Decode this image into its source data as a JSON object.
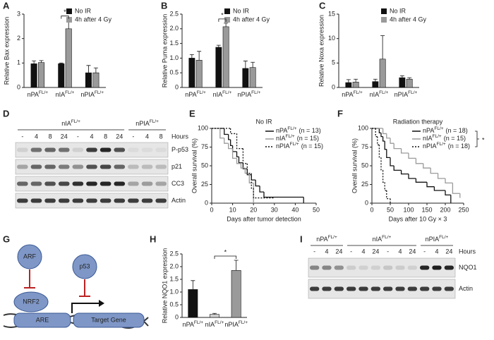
{
  "panel_labels": [
    "A",
    "B",
    "C",
    "D",
    "E",
    "F",
    "G",
    "H",
    "I"
  ],
  "chart_data": [
    {
      "type": "bar",
      "ylabel": "Relative Bax expression",
      "categories": [
        "nPA",
        "nIA",
        "nPIA"
      ],
      "category_superscripts": [
        "FL/+",
        "FL/+",
        "FL/+"
      ],
      "series": [
        {
          "name": "No IR",
          "color": "#111111",
          "values": [
            0.97,
            0.97,
            0.6
          ],
          "errors": [
            0.12,
            0.03,
            0.3
          ]
        },
        {
          "name": "4h after 4 Gy",
          "color": "#9a9a9a",
          "values": [
            1.02,
            2.4,
            0.6
          ],
          "errors": [
            0.08,
            0.35,
            0.2
          ]
        }
      ],
      "ylim": [
        0,
        3
      ],
      "yticks": [
        0,
        1,
        2,
        3
      ],
      "annotation": "*"
    },
    {
      "type": "bar",
      "ylabel": "Relative Puma expression",
      "categories": [
        "nPA",
        "nIA",
        "nPIA"
      ],
      "category_superscripts": [
        "FL/+",
        "FL/+",
        "FL/+"
      ],
      "series": [
        {
          "name": "No IR",
          "color": "#111111",
          "values": [
            1.0,
            1.37,
            0.65
          ],
          "errors": [
            0.12,
            0.07,
            0.25
          ]
        },
        {
          "name": "4h after 4 Gy",
          "color": "#9a9a9a",
          "values": [
            0.93,
            2.07,
            0.68
          ],
          "errors": [
            0.3,
            0.12,
            0.18
          ]
        }
      ],
      "ylim": [
        0,
        2.5
      ],
      "yticks": [
        0,
        0.5,
        {
          "value": 1,
          "label": "1.0"
        },
        1.5,
        {
          "value": 2,
          "label": "2.0"
        },
        2.5
      ],
      "annotation": "*"
    },
    {
      "type": "bar",
      "ylabel": "Relative Noxa expression",
      "categories": [
        "nPA",
        "nIA",
        "nPIA"
      ],
      "category_superscripts": [
        "FL/+",
        "FL/+",
        "FL/+"
      ],
      "series": [
        {
          "name": "No IR",
          "color": "#111111",
          "values": [
            1.0,
            1.2,
            2.0
          ],
          "errors": [
            0.6,
            0.5,
            0.4
          ]
        },
        {
          "name": "4h after 4 Gy",
          "color": "#9a9a9a",
          "values": [
            1.1,
            5.8,
            1.7
          ],
          "errors": [
            0.6,
            4.8,
            0.3
          ]
        }
      ],
      "ylim": [
        0,
        15
      ],
      "yticks": [
        0,
        5,
        10,
        15
      ]
    },
    {
      "type": "survival",
      "title": "No IR",
      "xlabel": "Days after tumor detection",
      "ylabel": "Overall survival (%)",
      "xlim": [
        0,
        50
      ],
      "xticks": [
        0,
        10,
        20,
        30,
        40,
        50
      ],
      "ylim": [
        0,
        100
      ],
      "yticks": [
        0,
        25,
        50,
        75,
        100
      ],
      "series": [
        {
          "name": "nPA",
          "name_superscript": "FL/+",
          "n_label": "(n = 13)",
          "color": "#111111",
          "dash": "solid",
          "x": [
            0,
            6,
            8,
            9,
            10,
            12,
            13,
            15,
            17,
            19,
            21,
            23,
            25,
            44
          ],
          "values": [
            100,
            92,
            85,
            77,
            69,
            62,
            54,
            46,
            38,
            31,
            23,
            15,
            8,
            0
          ]
        },
        {
          "name": "nIA",
          "name_superscript": "FL/+",
          "n_label": "(n = 15)",
          "color": "#9a9a9a",
          "dash": "solid",
          "x": [
            0,
            4,
            6,
            8,
            10,
            12,
            14,
            16,
            18,
            20
          ],
          "values": [
            100,
            87,
            80,
            73,
            60,
            53,
            47,
            40,
            27,
            0
          ]
        },
        {
          "name": "nPIA",
          "name_superscript": "FL/+",
          "n_label": "(n = 15)",
          "color": "#111111",
          "dash": "dotted",
          "x": [
            0,
            9,
            12,
            15,
            17,
            19,
            20,
            30
          ],
          "values": [
            100,
            93,
            73,
            53,
            40,
            20,
            7,
            7
          ]
        }
      ]
    },
    {
      "type": "survival",
      "title": "Radiation therapy",
      "xlabel": "Days after 10 Gy × 3",
      "ylabel": "Overall survival (%)",
      "xlim": [
        0,
        250
      ],
      "xticks": [
        0,
        50,
        100,
        150,
        200,
        250
      ],
      "ylim": [
        0,
        100
      ],
      "yticks": [
        0,
        25,
        50,
        75,
        100
      ],
      "annotation": "*",
      "series": [
        {
          "name": "nPA",
          "name_superscript": "FL/+",
          "n_label": "(n = 18)",
          "color": "#111111",
          "dash": "solid",
          "x": [
            0,
            20,
            25,
            30,
            35,
            40,
            50,
            60,
            80,
            100,
            120,
            150,
            170,
            200,
            215
          ],
          "values": [
            100,
            94,
            89,
            83,
            72,
            61,
            50,
            44,
            39,
            33,
            28,
            22,
            17,
            11,
            0
          ]
        },
        {
          "name": "nIA",
          "name_superscript": "FL/+",
          "n_label": "(n = 15)",
          "color": "#9a9a9a",
          "dash": "solid",
          "x": [
            0,
            30,
            40,
            50,
            60,
            80,
            100,
            120,
            140,
            160,
            180,
            200,
            220,
            240
          ],
          "values": [
            100,
            93,
            87,
            80,
            73,
            67,
            60,
            53,
            47,
            40,
            33,
            27,
            13,
            7
          ]
        },
        {
          "name": "nPIA",
          "name_superscript": "FL/+",
          "n_label": "(n = 18)",
          "color": "#111111",
          "dash": "dotted",
          "x": [
            0,
            10,
            15,
            20,
            25,
            30,
            35,
            40,
            50
          ],
          "values": [
            100,
            89,
            78,
            61,
            44,
            28,
            17,
            6,
            0
          ]
        }
      ]
    },
    {
      "type": "bar",
      "ylabel": "Relative NQO1 expression",
      "categories": [
        "nPA",
        "nIA",
        "nPIA"
      ],
      "category_superscripts": [
        "FL/+",
        "FL/+",
        "FL/+"
      ],
      "values": [
        1.1,
        0.12,
        1.85
      ],
      "errors": [
        0.35,
        0.04,
        0.4
      ],
      "colors": [
        "#111111",
        "#cfcfcf",
        "#9a9a9a"
      ],
      "ylim": [
        0,
        2.5
      ],
      "yticks": [
        0,
        0.5,
        {
          "value": 1,
          "label": "1.0"
        },
        1.5,
        {
          "value": 2,
          "label": "2.0"
        },
        2.5
      ],
      "annotation": "*"
    }
  ],
  "blot_d": {
    "groups": [
      {
        "name": "nIA",
        "superscript": "FL/+"
      },
      {
        "name": "nPIA",
        "superscript": "FL/+"
      }
    ],
    "lanes_label": "Hours",
    "lanes": [
      "-",
      "4",
      "8",
      "24",
      "-",
      "4",
      "8",
      "24",
      "-",
      "4",
      "8"
    ],
    "rows": [
      "P-p53",
      "p21",
      "CC3",
      "Actin"
    ]
  },
  "diagram_g": {
    "arf": "ARF",
    "p53": "p53",
    "nrf2": "NRF2",
    "are": "ARE",
    "target": "Target Gene"
  },
  "blot_i": {
    "groups": [
      {
        "name": "nPA",
        "superscript": "FL/+"
      },
      {
        "name": "nIA",
        "superscript": "FL/+"
      },
      {
        "name": "nPIA",
        "superscript": "FL/+"
      }
    ],
    "lanes_label": "Hours",
    "lanes": [
      "-",
      "4",
      "24",
      "-",
      "4",
      "24",
      "-",
      "4",
      "24",
      "-",
      "4",
      "24"
    ],
    "rows": [
      "NQO1",
      "Actin"
    ]
  }
}
